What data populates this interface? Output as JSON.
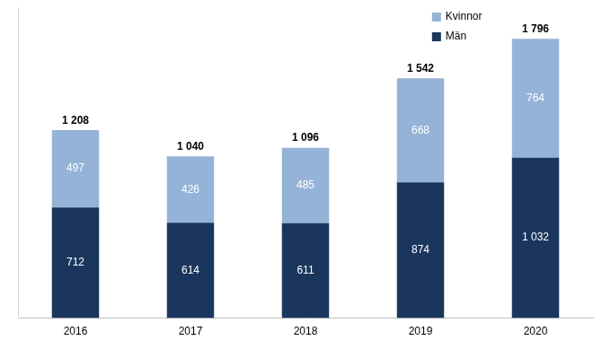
{
  "chart_data": {
    "type": "bar",
    "categories": [
      "2016",
      "2017",
      "2018",
      "2019",
      "2020"
    ],
    "series": [
      {
        "name": "Män",
        "color": "#1b365d",
        "values": [
          712,
          614,
          611,
          874,
          1032
        ],
        "value_labels": [
          "712",
          "614",
          "611",
          "874",
          "1 032"
        ]
      },
      {
        "name": "Kvinnor",
        "color": "#95b3d7",
        "values": [
          497,
          426,
          485,
          668,
          764
        ]
      }
    ],
    "totals": [
      1208,
      1040,
      1096,
      1542,
      1796
    ],
    "total_labels": [
      "1 208",
      "1 040",
      "1 096",
      "1 542",
      "1 796"
    ],
    "ylim": [
      0,
      2000
    ],
    "stacked": true,
    "data_labels": true,
    "legend": "top right",
    "grid": false,
    "tick_labels": "x"
  }
}
